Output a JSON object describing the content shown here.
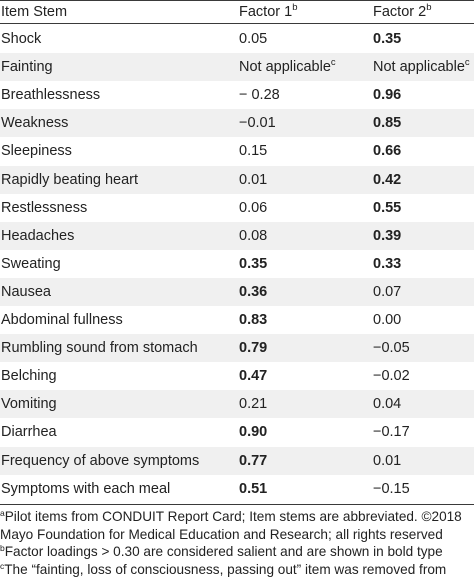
{
  "table": {
    "headers": [
      {
        "text": "Item Stem",
        "sup": ""
      },
      {
        "text": "Factor 1",
        "sup": "b"
      },
      {
        "text": "Factor 2",
        "sup": "b"
      }
    ],
    "rows": [
      {
        "item": "Shock",
        "f1": "0.05",
        "f1_sup": "",
        "f1_bold": false,
        "f2": "0.35",
        "f2_sup": "",
        "f2_bold": true
      },
      {
        "item": "Fainting",
        "f1": "Not applicable",
        "f1_sup": "c",
        "f1_bold": false,
        "f2": "Not applicable",
        "f2_sup": "c",
        "f2_bold": false
      },
      {
        "item": "Breathlessness",
        "f1": "− 0.28",
        "f1_sup": "",
        "f1_bold": false,
        "f2": "0.96",
        "f2_sup": "",
        "f2_bold": true
      },
      {
        "item": "Weakness",
        "f1": "−0.01",
        "f1_sup": "",
        "f1_bold": false,
        "f2": "0.85",
        "f2_sup": "",
        "f2_bold": true
      },
      {
        "item": "Sleepiness",
        "f1": "0.15",
        "f1_sup": "",
        "f1_bold": false,
        "f2": "0.66",
        "f2_sup": "",
        "f2_bold": true
      },
      {
        "item": "Rapidly beating heart",
        "f1": "0.01",
        "f1_sup": "",
        "f1_bold": false,
        "f2": "0.42",
        "f2_sup": "",
        "f2_bold": true
      },
      {
        "item": "Restlessness",
        "f1": "0.06",
        "f1_sup": "",
        "f1_bold": false,
        "f2": "0.55",
        "f2_sup": "",
        "f2_bold": true
      },
      {
        "item": "Headaches",
        "f1": "0.08",
        "f1_sup": "",
        "f1_bold": false,
        "f2": "0.39",
        "f2_sup": "",
        "f2_bold": true
      },
      {
        "item": "Sweating",
        "f1": "0.35",
        "f1_sup": "",
        "f1_bold": true,
        "f2": "0.33",
        "f2_sup": "",
        "f2_bold": true
      },
      {
        "item": "Nausea",
        "f1": "0.36",
        "f1_sup": "",
        "f1_bold": true,
        "f2": "0.07",
        "f2_sup": "",
        "f2_bold": false
      },
      {
        "item": "Abdominal fullness",
        "f1": "0.83",
        "f1_sup": "",
        "f1_bold": true,
        "f2": "0.00",
        "f2_sup": "",
        "f2_bold": false
      },
      {
        "item": "Rumbling sound from stomach",
        "f1": "0.79",
        "f1_sup": "",
        "f1_bold": true,
        "f2": "−0.05",
        "f2_sup": "",
        "f2_bold": false
      },
      {
        "item": "Belching",
        "f1": "0.47",
        "f1_sup": "",
        "f1_bold": true,
        "f2": "−0.02",
        "f2_sup": "",
        "f2_bold": false
      },
      {
        "item": "Vomiting",
        "f1": "0.21",
        "f1_sup": "",
        "f1_bold": false,
        "f2": "0.04",
        "f2_sup": "",
        "f2_bold": false
      },
      {
        "item": "Diarrhea",
        "f1": "0.90",
        "f1_sup": "",
        "f1_bold": true,
        "f2": "−0.17",
        "f2_sup": "",
        "f2_bold": false
      },
      {
        "item": "Frequency of above symptoms",
        "f1": "0.77",
        "f1_sup": "",
        "f1_bold": true,
        "f2": "0.01",
        "f2_sup": "",
        "f2_bold": false
      },
      {
        "item": "Symptoms with each meal",
        "f1": "0.51",
        "f1_sup": "",
        "f1_bold": true,
        "f2": "−0.15",
        "f2_sup": "",
        "f2_bold": false
      }
    ]
  },
  "footnotes": [
    {
      "sup": "a",
      "text": "Pilot items from CONDUIT Report Card; Item stems are abbreviated. ©2018"
    },
    {
      "sup": "",
      "text": "Mayo Foundation for Medical Education and Research; all rights reserved"
    },
    {
      "sup": "b",
      "text": "Factor loadings > 0.30 are considered salient and are shown in bold type"
    },
    {
      "sup": "c",
      "text": "The “fainting, loss of consciousness, passing out” item was removed from"
    }
  ]
}
